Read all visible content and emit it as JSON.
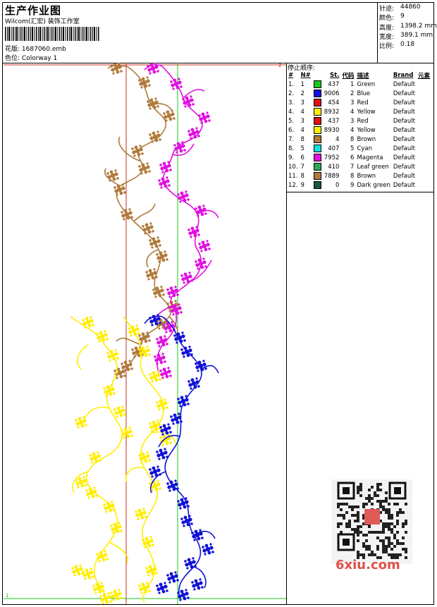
{
  "header": {
    "title": "生产作业图",
    "company": "Wilcom(汇宏) 装饰工作室",
    "design_label": "花版:",
    "design_value": "1687060.emb",
    "color_label": "色位:",
    "color_value": "Colorway 1"
  },
  "stats": [
    {
      "label": "针迹:",
      "value": "44860"
    },
    {
      "label": "颜色:",
      "value": "9"
    },
    {
      "label": "高度:",
      "value": "1398.2 mm"
    },
    {
      "label": "宽度:",
      "value": "389.1 mm"
    },
    {
      "label": "比例:",
      "value": "0.18"
    }
  ],
  "sequence": {
    "title": "停止顺序:",
    "headers": [
      "#",
      "N#",
      "St.",
      "代码",
      "描述",
      "Brand",
      "元素"
    ],
    "rows": [
      {
        "idx": "1.",
        "n": "1",
        "color": "#19c819",
        "st": "437",
        "code": "1",
        "desc": "Green",
        "brand": "Default"
      },
      {
        "idx": "2.",
        "n": "2",
        "color": "#1010d8",
        "st": "9006",
        "code": "2",
        "desc": "Blue",
        "brand": "Default"
      },
      {
        "idx": "3.",
        "n": "3",
        "color": "#e01010",
        "st": "454",
        "code": "3",
        "desc": "Red",
        "brand": "Default"
      },
      {
        "idx": "4.",
        "n": "4",
        "color": "#ffee00",
        "st": "8932",
        "code": "4",
        "desc": "Yellow",
        "brand": "Default"
      },
      {
        "idx": "5.",
        "n": "3",
        "color": "#e01010",
        "st": "437",
        "code": "3",
        "desc": "Red",
        "brand": "Default"
      },
      {
        "idx": "6.",
        "n": "4",
        "color": "#ffee00",
        "st": "8930",
        "code": "4",
        "desc": "Yellow",
        "brand": "Default"
      },
      {
        "idx": "7.",
        "n": "8",
        "color": "#b07a3c",
        "st": "4",
        "code": "8",
        "desc": "Brown",
        "brand": "Default"
      },
      {
        "idx": "8.",
        "n": "5",
        "color": "#10e0e0",
        "st": "407",
        "code": "5",
        "desc": "Cyan",
        "brand": "Default"
      },
      {
        "idx": "9.",
        "n": "6",
        "color": "#e010e0",
        "st": "7952",
        "code": "6",
        "desc": "Magenta",
        "brand": "Default"
      },
      {
        "idx": "10.",
        "n": "7",
        "color": "#30a850",
        "st": "410",
        "code": "7",
        "desc": "Leaf green",
        "brand": "Default"
      },
      {
        "idx": "11.",
        "n": "8",
        "color": "#b07a3c",
        "st": "7889",
        "code": "8",
        "desc": "Brown",
        "brand": "Default"
      },
      {
        "idx": "12.",
        "n": "9",
        "color": "#1a5a3a",
        "st": "0",
        "code": "9",
        "desc": "Dark green",
        "brand": "Default"
      }
    ]
  },
  "canvas": {
    "corner_top": "2",
    "corner_bottom": "1",
    "colors": {
      "brown": "#b07a3c",
      "magenta": "#e010e0",
      "yellow": "#ffee00",
      "blue": "#1010d8",
      "red_line": "#c03020",
      "green_line": "#19c819"
    }
  },
  "watermark": {
    "text": "6xiu.com"
  }
}
